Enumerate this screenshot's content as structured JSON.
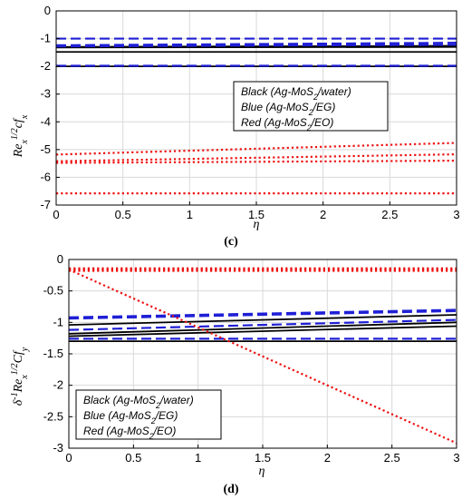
{
  "chart_data": [
    {
      "type": "line",
      "panel_label": "(c)",
      "xlabel": "η",
      "ylabel": "Re_x^{1/2} Cf_x",
      "xlim": [
        0,
        3
      ],
      "ylim": [
        -7,
        0
      ],
      "xticks": [
        "0",
        "0.5",
        "1",
        "1.5",
        "2",
        "2.5",
        "3"
      ],
      "yticks": [
        "0",
        "-1",
        "-2",
        "-3",
        "-4",
        "-5",
        "-6",
        "-7"
      ],
      "grid": true,
      "legend_position": "center-right",
      "legend": [
        "Black (Ag-MoS2/water)",
        "Blue  (Ag-MoS2/EG)",
        "Red (Ag-MoS2/EO)"
      ],
      "series": [
        {
          "group": "water",
          "color": "#000000",
          "dash": "solid",
          "x": [
            0,
            3
          ],
          "y": [
            -1.3,
            -1.26
          ]
        },
        {
          "group": "water",
          "color": "#000000",
          "dash": "solid",
          "x": [
            0,
            3
          ],
          "y": [
            -1.32,
            -1.3
          ]
        },
        {
          "group": "water",
          "color": "#000000",
          "dash": "solid",
          "x": [
            0,
            3
          ],
          "y": [
            -1.48,
            -1.48
          ]
        },
        {
          "group": "water",
          "color": "#000000",
          "dash": "solid",
          "x": [
            0,
            3
          ],
          "y": [
            -2.0,
            -2.0
          ]
        },
        {
          "group": "EG",
          "color": "#1f1fd6",
          "dash": "dashed",
          "x": [
            0,
            3
          ],
          "y": [
            -1.0,
            -1.0
          ]
        },
        {
          "group": "EG",
          "color": "#1f1fd6",
          "dash": "dashed",
          "x": [
            0,
            3
          ],
          "y": [
            -1.24,
            -1.15
          ]
        },
        {
          "group": "EG",
          "color": "#1f1fd6",
          "dash": "dashed",
          "x": [
            0,
            3
          ],
          "y": [
            -1.28,
            -1.22
          ]
        },
        {
          "group": "EG",
          "color": "#1f1fd6",
          "dash": "dashed",
          "x": [
            0,
            3
          ],
          "y": [
            -1.98,
            -1.98
          ]
        },
        {
          "group": "EO",
          "color": "#ee1111",
          "dash": "dotted",
          "x": [
            0,
            3
          ],
          "y": [
            -5.18,
            -4.76
          ]
        },
        {
          "group": "EO",
          "color": "#ee1111",
          "dash": "dotted",
          "x": [
            0,
            3
          ],
          "y": [
            -5.42,
            -5.17
          ]
        },
        {
          "group": "EO",
          "color": "#ee1111",
          "dash": "dotted",
          "x": [
            0,
            3
          ],
          "y": [
            -5.48,
            -5.4
          ]
        },
        {
          "group": "EO",
          "color": "#ee1111",
          "dash": "dotted",
          "x": [
            0,
            3
          ],
          "y": [
            -6.58,
            -6.58
          ]
        }
      ]
    },
    {
      "type": "line",
      "panel_label": "(d)",
      "xlabel": "η",
      "ylabel": "δ^{-1} Re_x^{1/2} Cf_y",
      "xlim": [
        0,
        3
      ],
      "ylim": [
        -3,
        0
      ],
      "xticks": [
        "0",
        "0.5",
        "1",
        "1.5",
        "2",
        "2.5",
        "3"
      ],
      "yticks": [
        "0",
        "-0.5",
        "-1",
        "-1.5",
        "-2",
        "-2.5",
        "-3"
      ],
      "grid": true,
      "legend_position": "lower-left",
      "legend": [
        "Black (Ag-MoS2/water)",
        "Blue  (Ag-MoS2/EG)",
        "Red (Ag-MoS2/EO)"
      ],
      "series": [
        {
          "group": "water",
          "color": "#000000",
          "dash": "solid",
          "x": [
            0,
            3
          ],
          "y": [
            -1.04,
            -0.88
          ]
        },
        {
          "group": "water",
          "color": "#000000",
          "dash": "solid",
          "x": [
            0,
            3
          ],
          "y": [
            -1.18,
            -1.0
          ]
        },
        {
          "group": "water",
          "color": "#000000",
          "dash": "solid",
          "x": [
            0,
            3
          ],
          "y": [
            -1.22,
            -1.06
          ]
        },
        {
          "group": "water",
          "color": "#000000",
          "dash": "solid",
          "x": [
            0,
            3
          ],
          "y": [
            -1.3,
            -1.3
          ]
        },
        {
          "group": "EG",
          "color": "#1f1fd6",
          "dash": "dashed",
          "x": [
            0,
            3
          ],
          "y": [
            -0.92,
            -0.8
          ]
        },
        {
          "group": "EG",
          "color": "#1f1fd6",
          "dash": "dashed",
          "x": [
            0,
            3
          ],
          "y": [
            -0.94,
            -0.82
          ]
        },
        {
          "group": "EG",
          "color": "#1f1fd6",
          "dash": "dashed",
          "x": [
            0,
            3
          ],
          "y": [
            -1.12,
            -0.96
          ]
        },
        {
          "group": "EG",
          "color": "#1f1fd6",
          "dash": "dashed",
          "x": [
            0,
            3
          ],
          "y": [
            -1.26,
            -1.26
          ]
        },
        {
          "group": "EO",
          "color": "#ee1111",
          "dash": "dotted",
          "x": [
            0,
            3
          ],
          "y": [
            -0.14,
            -0.14
          ]
        },
        {
          "group": "EO",
          "color": "#ee1111",
          "dash": "dotted",
          "x": [
            0,
            3
          ],
          "y": [
            -0.16,
            -0.16
          ]
        },
        {
          "group": "EO",
          "color": "#ee1111",
          "dash": "dotted",
          "x": [
            0,
            3
          ],
          "y": [
            -0.18,
            -0.18
          ]
        },
        {
          "group": "EO",
          "color": "#ee1111",
          "dash": "dotted",
          "x": [
            0,
            3
          ],
          "y": [
            -0.16,
            -2.92
          ]
        }
      ]
    }
  ]
}
